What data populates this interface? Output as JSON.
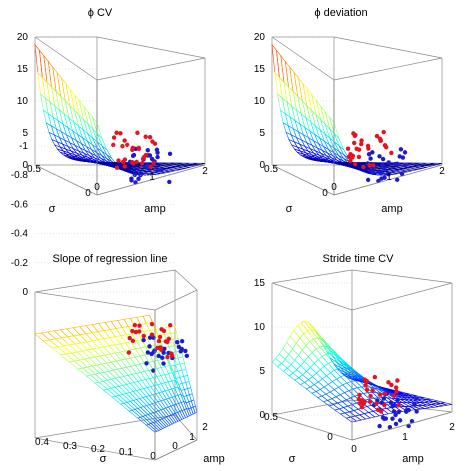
{
  "chart_data": [
    {
      "type": "surface+scatter",
      "title": "ϕ CV",
      "zlabel": "",
      "xlabel": "amp",
      "ylabel": "σ",
      "zlim": [
        0,
        20
      ],
      "z_ticks": [
        "0",
        "5",
        "10",
        "15",
        "20"
      ],
      "amp_ticks": [
        "0",
        "1",
        "2"
      ],
      "sigma_ticks": [
        "0.5",
        "0"
      ],
      "grid": true,
      "series": [
        {
          "name": "",
          "color": "#e8121e",
          "marker": "dot"
        },
        {
          "name": "",
          "color": "#1c1cc8",
          "marker": "dot"
        }
      ]
    },
    {
      "type": "surface+scatter",
      "title": "ϕ deviation",
      "xlabel": "amp",
      "ylabel": "σ",
      "zlim": [
        0,
        20
      ],
      "z_ticks": [
        "0",
        "5",
        "10",
        "15",
        "20"
      ],
      "amp_ticks": [
        "0",
        "1",
        "2"
      ],
      "sigma_ticks": [
        "0.5",
        "0"
      ],
      "grid": true
    },
    {
      "type": "surface+scatter",
      "title": "Slope of regression line",
      "xlabel": "amp",
      "ylabel": "σ",
      "zlim": [
        -1,
        0
      ],
      "z_ticks": [
        "0",
        "-0.2",
        "-0.4",
        "-0.6",
        "-0.8",
        "-1"
      ],
      "amp_ticks": [
        "0",
        "1",
        "2"
      ],
      "sigma_ticks": [
        "0.4",
        "0.3",
        "0.2",
        "0.1",
        "0"
      ],
      "grid": true
    },
    {
      "type": "surface+scatter",
      "title": "Stride time CV",
      "xlabel": "amp",
      "ylabel": "σ",
      "zlim": [
        0,
        15
      ],
      "z_ticks": [
        "0",
        "5",
        "10",
        "15"
      ],
      "amp_ticks": [
        "0",
        "1",
        "2"
      ],
      "sigma_ticks": [
        "0.5",
        "0"
      ],
      "grid": true
    }
  ],
  "colors": {
    "red_points": "#e8121e",
    "blue_points": "#1c1cc8",
    "colormap": "jet"
  }
}
